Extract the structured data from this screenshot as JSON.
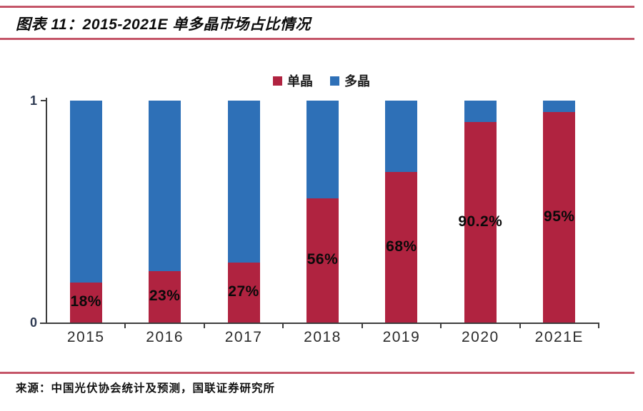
{
  "page": {
    "title": "图表 11：2015-2021E 单多晶市场占比情况",
    "source": "来源：中国光伏协会统计及预测，国联证券研究所"
  },
  "colors": {
    "mono_red": "#B02340",
    "poly_blue": "#2E70B7",
    "rule_red": "#C45568",
    "axis_gray": "#3D3D3D"
  },
  "chart_data": {
    "type": "bar",
    "stacked": true,
    "title": "2015-2021E 单多晶市场占比情况",
    "categories": [
      "2015",
      "2016",
      "2017",
      "2018",
      "2019",
      "2020",
      "2021E"
    ],
    "series": [
      {
        "name": "单晶",
        "color": "#B02340",
        "values": [
          0.18,
          0.23,
          0.27,
          0.56,
          0.68,
          0.902,
          0.95
        ],
        "labels": [
          "18%",
          "23%",
          "27%",
          "56%",
          "68%",
          "90.2%",
          "95%"
        ]
      },
      {
        "name": "多晶",
        "color": "#2E70B7",
        "values": [
          0.82,
          0.77,
          0.73,
          0.44,
          0.32,
          0.098,
          0.05
        ],
        "labels": []
      }
    ],
    "xlabel": "",
    "ylabel": "",
    "ylim": [
      0,
      1
    ],
    "yticks": [
      "0",
      "1"
    ],
    "grid": false,
    "legend_position": "top-center"
  }
}
